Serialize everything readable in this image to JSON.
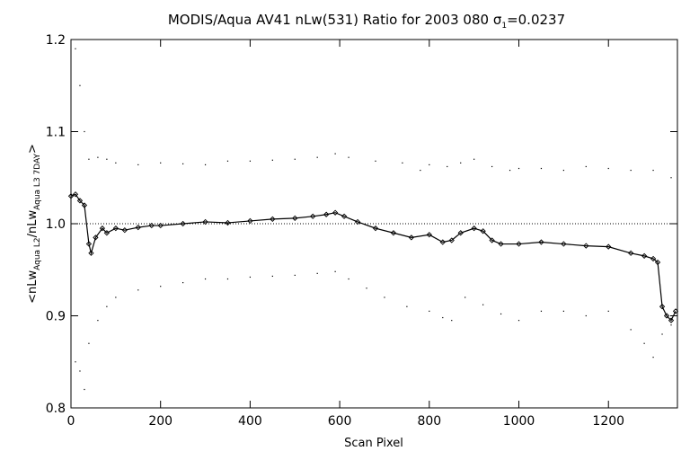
{
  "chart_data": {
    "type": "scatter",
    "title_prefix": "MODIS/Aqua AV41 nLw(531) Ratio for 2003 080 ",
    "title_sigma": "σ",
    "title_sigma_sub": "1",
    "title_sigma_value": "=0.0237",
    "xlabel": "Scan Pixel",
    "ylabel_parts": [
      "<nLw",
      "Aqua L2",
      "/nLw",
      "Aqua L3 7DAY",
      ">"
    ],
    "xlim": [
      0,
      1354
    ],
    "ylim": [
      0.8,
      1.2
    ],
    "xticks": [
      0,
      200,
      400,
      600,
      800,
      1000,
      1200
    ],
    "xtick_labels": [
      "0",
      "200",
      "400",
      "600",
      "800",
      "1000",
      "1200"
    ],
    "yticks": [
      0.8,
      0.9,
      1.0,
      1.1,
      1.2
    ],
    "ytick_labels": [
      "0.8",
      "0.9",
      "1.0",
      "1.1",
      "1.2"
    ],
    "reference_line": 1.0,
    "grid": false,
    "series": [
      {
        "role": "mean-ratio",
        "marker": "diamond",
        "x": [
          0,
          10,
          20,
          30,
          40,
          45,
          55,
          70,
          80,
          100,
          120,
          150,
          180,
          200,
          250,
          300,
          350,
          400,
          450,
          500,
          540,
          570,
          590,
          610,
          640,
          680,
          720,
          760,
          800,
          830,
          850,
          870,
          900,
          920,
          940,
          960,
          1000,
          1050,
          1100,
          1150,
          1200,
          1250,
          1280,
          1300,
          1310,
          1320,
          1330,
          1340,
          1350
        ],
        "y": [
          1.03,
          1.032,
          1.025,
          1.02,
          0.978,
          0.968,
          0.985,
          0.995,
          0.99,
          0.995,
          0.993,
          0.996,
          0.998,
          0.998,
          1.0,
          1.002,
          1.001,
          1.003,
          1.005,
          1.006,
          1.008,
          1.01,
          1.012,
          1.008,
          1.002,
          0.995,
          0.99,
          0.985,
          0.988,
          0.98,
          0.982,
          0.99,
          0.995,
          0.992,
          0.982,
          0.978,
          0.978,
          0.98,
          0.978,
          0.976,
          0.975,
          0.968,
          0.965,
          0.962,
          0.958,
          0.91,
          0.9,
          0.895,
          0.905
        ]
      },
      {
        "role": "upper-bound",
        "marker": "dot",
        "x": [
          10,
          20,
          30,
          40,
          60,
          80,
          100,
          150,
          200,
          250,
          300,
          350,
          400,
          450,
          500,
          550,
          590,
          620,
          680,
          740,
          780,
          800,
          840,
          870,
          900,
          940,
          980,
          1000,
          1050,
          1100,
          1150,
          1200,
          1250,
          1300,
          1340
        ],
        "y": [
          1.19,
          1.15,
          1.1,
          1.07,
          1.072,
          1.07,
          1.066,
          1.064,
          1.066,
          1.065,
          1.064,
          1.068,
          1.068,
          1.069,
          1.07,
          1.072,
          1.076,
          1.072,
          1.068,
          1.066,
          1.058,
          1.064,
          1.062,
          1.066,
          1.07,
          1.062,
          1.058,
          1.06,
          1.06,
          1.058,
          1.062,
          1.06,
          1.058,
          1.058,
          1.05
        ]
      },
      {
        "role": "lower-bound",
        "marker": "dot",
        "x": [
          10,
          20,
          30,
          40,
          60,
          80,
          100,
          150,
          200,
          250,
          300,
          350,
          400,
          450,
          500,
          550,
          590,
          620,
          660,
          700,
          750,
          800,
          830,
          850,
          880,
          920,
          960,
          1000,
          1050,
          1100,
          1150,
          1200,
          1250,
          1280,
          1300,
          1320,
          1340
        ],
        "y": [
          0.85,
          0.84,
          0.82,
          0.87,
          0.895,
          0.91,
          0.92,
          0.928,
          0.932,
          0.936,
          0.94,
          0.94,
          0.942,
          0.943,
          0.944,
          0.946,
          0.948,
          0.94,
          0.93,
          0.92,
          0.91,
          0.905,
          0.898,
          0.895,
          0.92,
          0.912,
          0.902,
          0.895,
          0.905,
          0.905,
          0.9,
          0.905,
          0.885,
          0.87,
          0.855,
          0.88,
          0.89
        ]
      }
    ]
  }
}
